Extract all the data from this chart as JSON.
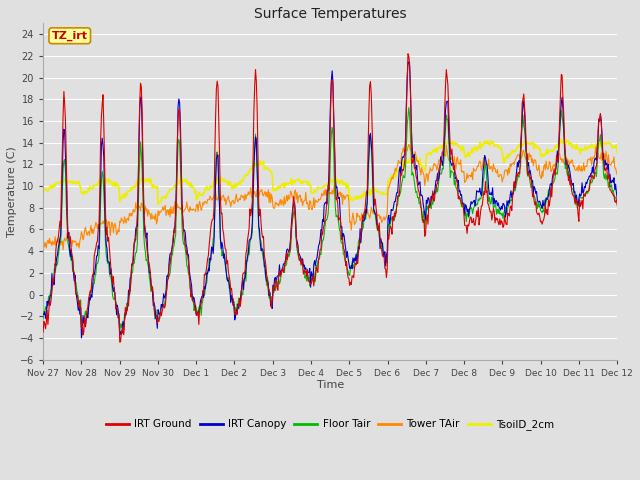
{
  "title": "Surface Temperatures",
  "xlabel": "Time",
  "ylabel": "Temperature (C)",
  "ylim": [
    -6,
    25
  ],
  "yticks": [
    -6,
    -4,
    -2,
    0,
    2,
    4,
    6,
    8,
    10,
    12,
    14,
    16,
    18,
    20,
    22,
    24
  ],
  "background_color": "#e0e0e0",
  "plot_bg_color": "#e0e0e0",
  "grid_color": "#ffffff",
  "series_colors": {
    "IRT Ground": "#dd0000",
    "IRT Canopy": "#0000cc",
    "Floor Tair": "#00bb00",
    "Tower TAir": "#ff8800",
    "TsoilD_2cm": "#eeee00"
  },
  "legend_entries": [
    "IRT Ground",
    "IRT Canopy",
    "Floor Tair",
    "Tower TAir",
    "TsoilD_2cm"
  ],
  "xtick_labels": [
    "Nov 27",
    "Nov 28",
    "Nov 29",
    "Nov 30",
    "Dec 1",
    "Dec 2",
    "Dec 3",
    "Dec 4",
    "Dec 5",
    "Dec 6",
    "Dec 7",
    "Dec 8",
    "Dec 9",
    "Dec 10",
    "Dec 11",
    "Dec 12"
  ],
  "annotation_text": "TZ_irt",
  "annotation_bg": "#ffff99",
  "annotation_border": "#cc8800",
  "annotation_text_color": "#cc0000",
  "figsize": [
    6.4,
    4.8
  ],
  "dpi": 100
}
